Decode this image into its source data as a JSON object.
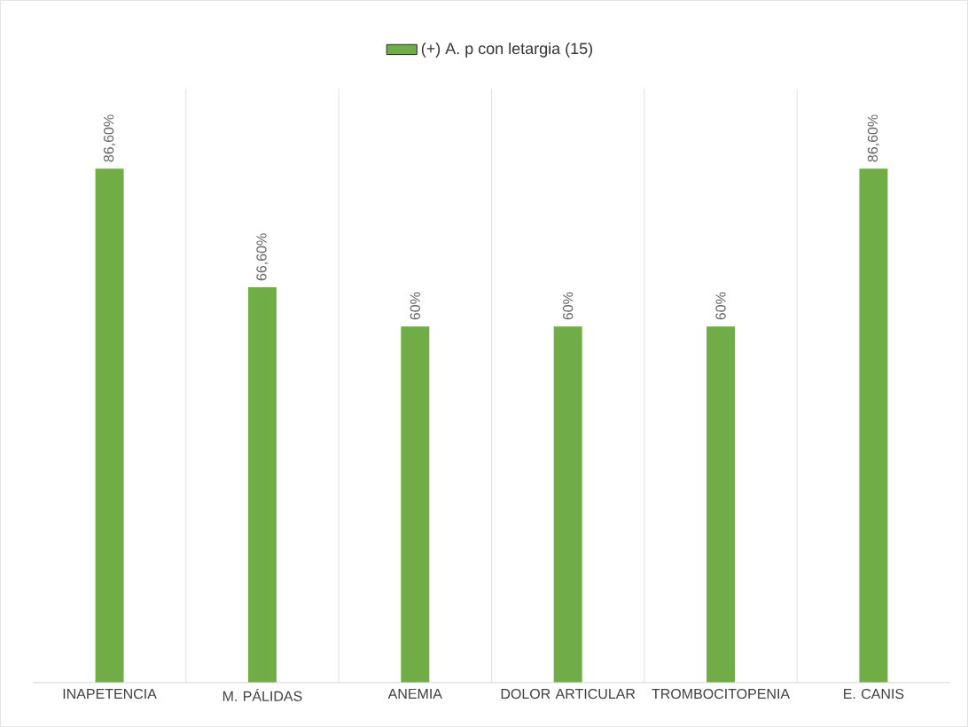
{
  "chart_data": {
    "type": "bar",
    "categories": [
      "INAPETENCIA",
      "M. PÁLIDAS",
      "ANEMIA",
      "DOLOR ARTICULAR",
      "TROMBOCITOPENIA",
      "E. CANIS"
    ],
    "series": [
      {
        "name": "(+) A. p con letargia (15)",
        "color": "#70ad47",
        "values": [
          86.6,
          66.6,
          60,
          60,
          60,
          86.6
        ],
        "value_labels": [
          "86,60%",
          "66,60%",
          "60%",
          "60%",
          "60%",
          "86,60%"
        ]
      }
    ],
    "grid": "x",
    "legend": "top"
  }
}
